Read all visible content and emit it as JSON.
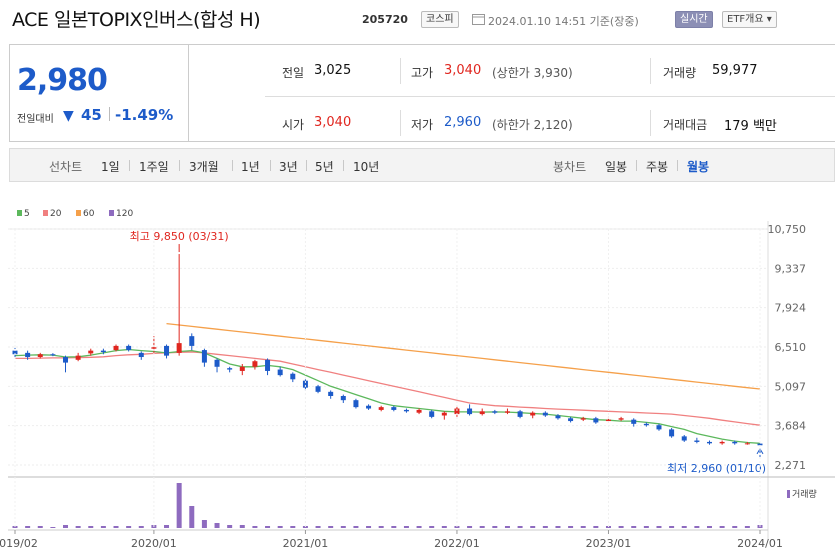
{
  "header": {
    "title": "ACE 일본TOPIX인버스(합성 H)",
    "code": "205720",
    "market": "코스피",
    "datetime": "2024.01.10 14:51 기준(장중)",
    "realtime_label": "실시간",
    "etf_label": "ETF개요 ▾"
  },
  "quote": {
    "price": "2,980",
    "change_label": "전일대비",
    "change_arrow": "▼",
    "change": "45",
    "change_rate": "-1.49%",
    "prev_close_label": "전일",
    "prev_close": "3,025",
    "high_label": "고가",
    "high": "3,040",
    "upper_limit_label": "(상한가",
    "upper_limit": "3,930)",
    "volume_label": "거래량",
    "volume": "59,977",
    "open_label": "시가",
    "open": "3,040",
    "low_label": "저가",
    "low": "2,960",
    "lower_limit_label": "(하한가",
    "lower_limit": "2,120)",
    "turnover_label": "거래대금",
    "turnover": "179",
    "turnover_unit": "백만"
  },
  "periods": {
    "label": "선차트",
    "items": [
      "1일",
      "1주일",
      "3개월",
      "1년",
      "3년",
      "5년",
      "10년"
    ],
    "candle_label": "봉차트",
    "candle_items": [
      "일봉",
      "주봉",
      "월봉"
    ],
    "selected_candle": "월봉"
  },
  "colors": {
    "up": "#e0261f",
    "down": "#1d5bc9",
    "ma5": "#5cb85c",
    "ma20": "#f08080",
    "ma60": "#f5a04a",
    "ma120": "#8e6bbf"
  },
  "chart_data": {
    "type": "candlestick",
    "legend": [
      {
        "name": "5",
        "color": "#5cb85c"
      },
      {
        "name": "20",
        "color": "#f08080"
      },
      {
        "name": "60",
        "color": "#f5a04a"
      },
      {
        "name": "120",
        "color": "#8e6bbf"
      }
    ],
    "y_ticks": [
      "10,750",
      "9,337",
      "7,924",
      "6,510",
      "5,097",
      "3,684",
      "2,271"
    ],
    "y_tick_values": [
      10750,
      9337,
      7924,
      6510,
      5097,
      3684,
      2271
    ],
    "ylim": [
      2271,
      10750
    ],
    "x_ticks": [
      "2019/02",
      "2020/01",
      "2021/01",
      "2022/01",
      "2023/01",
      "2024/01"
    ],
    "x_tick_months": [
      0,
      11,
      23,
      35,
      47,
      59
    ],
    "months": 60,
    "max_annotation": {
      "text": "최고 9,850 (03/31)",
      "value": 9850,
      "month": 13
    },
    "min_annotation": {
      "text": "최저 2,960 (01/10)",
      "value": 2960,
      "month": 59
    },
    "volume_label": "거래량",
    "candles": [
      [
        6380,
        6250,
        6480,
        6150
      ],
      [
        6300,
        6150,
        6380,
        6050
      ],
      [
        6150,
        6250,
        6300,
        6100
      ],
      [
        6250,
        6230,
        6290,
        6180
      ],
      [
        6150,
        5950,
        6200,
        5600
      ],
      [
        6050,
        6200,
        6300,
        6000
      ],
      [
        6280,
        6380,
        6450,
        6200
      ],
      [
        6380,
        6330,
        6450,
        6250
      ],
      [
        6400,
        6550,
        6600,
        6350
      ],
      [
        6550,
        6400,
        6600,
        6350
      ],
      [
        6300,
        6150,
        6350,
        6050
      ],
      [
        6450,
        6500,
        6900,
        6300
      ],
      [
        6550,
        6200,
        6600,
        6100
      ],
      [
        6300,
        6650,
        9850,
        6200
      ],
      [
        6900,
        6550,
        7000,
        6400
      ],
      [
        6400,
        5950,
        6450,
        5800
      ],
      [
        6050,
        5800,
        6100,
        5600
      ],
      [
        5750,
        5700,
        5800,
        5600
      ],
      [
        5650,
        5800,
        5900,
        5500
      ],
      [
        5800,
        6000,
        6050,
        5700
      ],
      [
        6050,
        5650,
        6100,
        5500
      ],
      [
        5700,
        5500,
        5800,
        5450
      ],
      [
        5550,
        5350,
        5600,
        5250
      ],
      [
        5300,
        5050,
        5350,
        4950
      ],
      [
        5100,
        4900,
        5150,
        4850
      ],
      [
        4900,
        4750,
        4950,
        4650
      ],
      [
        4750,
        4600,
        4800,
        4500
      ],
      [
        4600,
        4350,
        4650,
        4300
      ],
      [
        4400,
        4300,
        4450,
        4250
      ],
      [
        4250,
        4350,
        4400,
        4200
      ],
      [
        4350,
        4250,
        4400,
        4200
      ],
      [
        4250,
        4200,
        4300,
        4150
      ],
      [
        4150,
        4250,
        4300,
        4100
      ],
      [
        4200,
        4000,
        4250,
        3950
      ],
      [
        4050,
        4150,
        4200,
        3900
      ],
      [
        4100,
        4300,
        4400,
        4000
      ],
      [
        4300,
        4100,
        4450,
        4050
      ],
      [
        4100,
        4200,
        4300,
        4050
      ],
      [
        4200,
        4150,
        4250,
        4100
      ],
      [
        4150,
        4200,
        4300,
        4100
      ],
      [
        4200,
        4000,
        4250,
        3950
      ],
      [
        4050,
        4150,
        4200,
        3950
      ],
      [
        4150,
        4050,
        4200,
        4000
      ],
      [
        4050,
        3950,
        4100,
        3900
      ],
      [
        3950,
        3850,
        4000,
        3800
      ],
      [
        3900,
        3950,
        4000,
        3850
      ],
      [
        3950,
        3800,
        4000,
        3750
      ],
      [
        3850,
        3900,
        4000,
        3800
      ],
      [
        3900,
        3950,
        4000,
        3850
      ],
      [
        3900,
        3750,
        3950,
        3650
      ],
      [
        3750,
        3700,
        3800,
        3650
      ],
      [
        3700,
        3550,
        3750,
        3500
      ],
      [
        3550,
        3300,
        3600,
        3250
      ],
      [
        3300,
        3150,
        3350,
        3100
      ],
      [
        3150,
        3100,
        3250,
        3050
      ],
      [
        3100,
        3050,
        3150,
        3000
      ],
      [
        3050,
        3100,
        3150,
        3000
      ],
      [
        3100,
        3050,
        3150,
        3000
      ],
      [
        3050,
        3050,
        3100,
        3000
      ],
      [
        3040,
        2980,
        3040,
        2960
      ]
    ],
    "ma5": [
      6200,
      6220,
      6230,
      6220,
      6150,
      6160,
      6220,
      6300,
      6380,
      6420,
      6380,
      6350,
      6300,
      6350,
      6380,
      6300,
      6100,
      5900,
      5800,
      5800,
      5850,
      5800,
      5700,
      5500,
      5300,
      5100,
      4950,
      4800,
      4650,
      4500,
      4400,
      4350,
      4300,
      4250,
      4200,
      4180,
      4180,
      4170,
      4180,
      4170,
      4150,
      4120,
      4100,
      4050,
      4000,
      3950,
      3900,
      3880,
      3850,
      3850,
      3800,
      3750,
      3650,
      3550,
      3400,
      3300,
      3200,
      3130,
      3080,
      3050
    ],
    "ma20": [
      6100,
      6100,
      6110,
      6120,
      6120,
      6130,
      6140,
      6160,
      6200,
      6230,
      6250,
      6280,
      6300,
      6320,
      6330,
      6300,
      6250,
      6200,
      6150,
      6100,
      6050,
      6000,
      5900,
      5800,
      5700,
      5600,
      5500,
      5400,
      5300,
      5200,
      5100,
      5000,
      4900,
      4800,
      4700,
      4600,
      4500,
      4450,
      4400,
      4380,
      4350,
      4330,
      4300,
      4280,
      4260,
      4240,
      4220,
      4200,
      4180,
      4160,
      4140,
      4120,
      4100,
      4050,
      4000,
      3950,
      3880,
      3820,
      3760,
      3700
    ],
    "ma60": [
      null,
      null,
      null,
      null,
      null,
      null,
      null,
      null,
      null,
      null,
      null,
      null,
      7350,
      7300,
      7250,
      7200,
      7150,
      7100,
      7050,
      7000,
      6950,
      6900,
      6850,
      6800,
      6750,
      6700,
      6650,
      6600,
      6550,
      6500,
      6450,
      6400,
      6350,
      6300,
      6250,
      6200,
      6150,
      6100,
      6050,
      6000,
      5950,
      5900,
      5850,
      5800,
      5750,
      5700,
      5650,
      5600,
      5550,
      5500,
      5450,
      5400,
      5350,
      5300,
      5250,
      5200,
      5150,
      5100,
      5050,
      5000
    ],
    "volume_months": [
      0,
      1,
      2,
      3,
      4,
      5,
      6,
      7,
      8,
      9,
      10,
      11,
      12,
      13,
      14,
      15,
      16,
      17,
      18,
      19,
      20,
      21,
      22,
      23,
      24,
      25,
      26,
      27,
      28,
      29,
      30,
      31,
      32,
      33,
      34,
      35,
      36,
      37,
      38,
      39,
      40,
      41,
      42,
      43,
      44,
      45,
      46,
      47,
      48,
      49,
      50,
      51,
      52,
      53,
      54,
      55,
      56,
      57,
      58,
      59
    ],
    "volume": [
      2,
      2,
      2,
      1,
      3,
      2,
      2,
      2,
      2,
      2,
      2,
      3,
      3,
      45,
      22,
      8,
      5,
      3,
      3,
      2,
      2,
      2,
      2,
      2,
      2,
      2,
      2,
      2,
      2,
      2,
      2,
      2,
      2,
      2,
      2,
      2,
      2,
      2,
      2,
      2,
      2,
      2,
      2,
      2,
      2,
      2,
      2,
      2,
      2,
      2,
      2,
      2,
      2,
      2,
      2,
      2,
      2,
      2,
      2,
      3
    ]
  }
}
